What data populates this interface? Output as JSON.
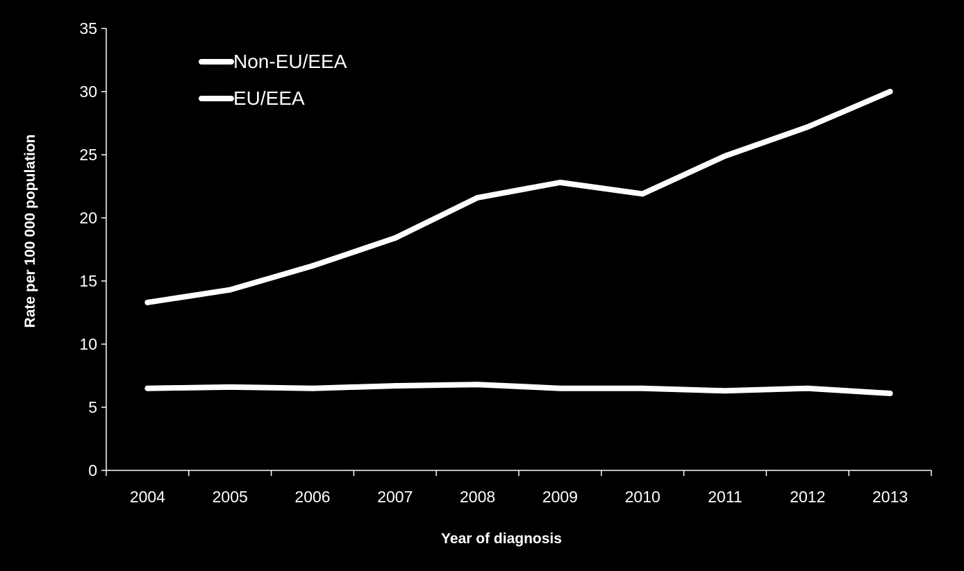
{
  "chart_data": {
    "type": "line",
    "title": "",
    "xlabel": "Year of diagnosis",
    "ylabel": "Rate per 100 000 population",
    "categories": [
      "2004",
      "2005",
      "2006",
      "2007",
      "2008",
      "2009",
      "2010",
      "2011",
      "2012",
      "2013"
    ],
    "yticks": [
      "0",
      "5",
      "10",
      "15",
      "20",
      "25",
      "30",
      "35"
    ],
    "ylim": [
      0,
      35
    ],
    "grid": false,
    "legend_position": "top-left",
    "series": [
      {
        "name": "Non-EU/EEA",
        "color": "#ffffff",
        "values": [
          13.3,
          14.3,
          16.2,
          18.4,
          21.6,
          22.8,
          21.9,
          24.9,
          27.2,
          30.0
        ]
      },
      {
        "name": "EU/EEA",
        "color": "#ffffff",
        "values": [
          6.5,
          6.6,
          6.5,
          6.7,
          6.8,
          6.5,
          6.5,
          6.3,
          6.5,
          6.1
        ]
      }
    ]
  }
}
